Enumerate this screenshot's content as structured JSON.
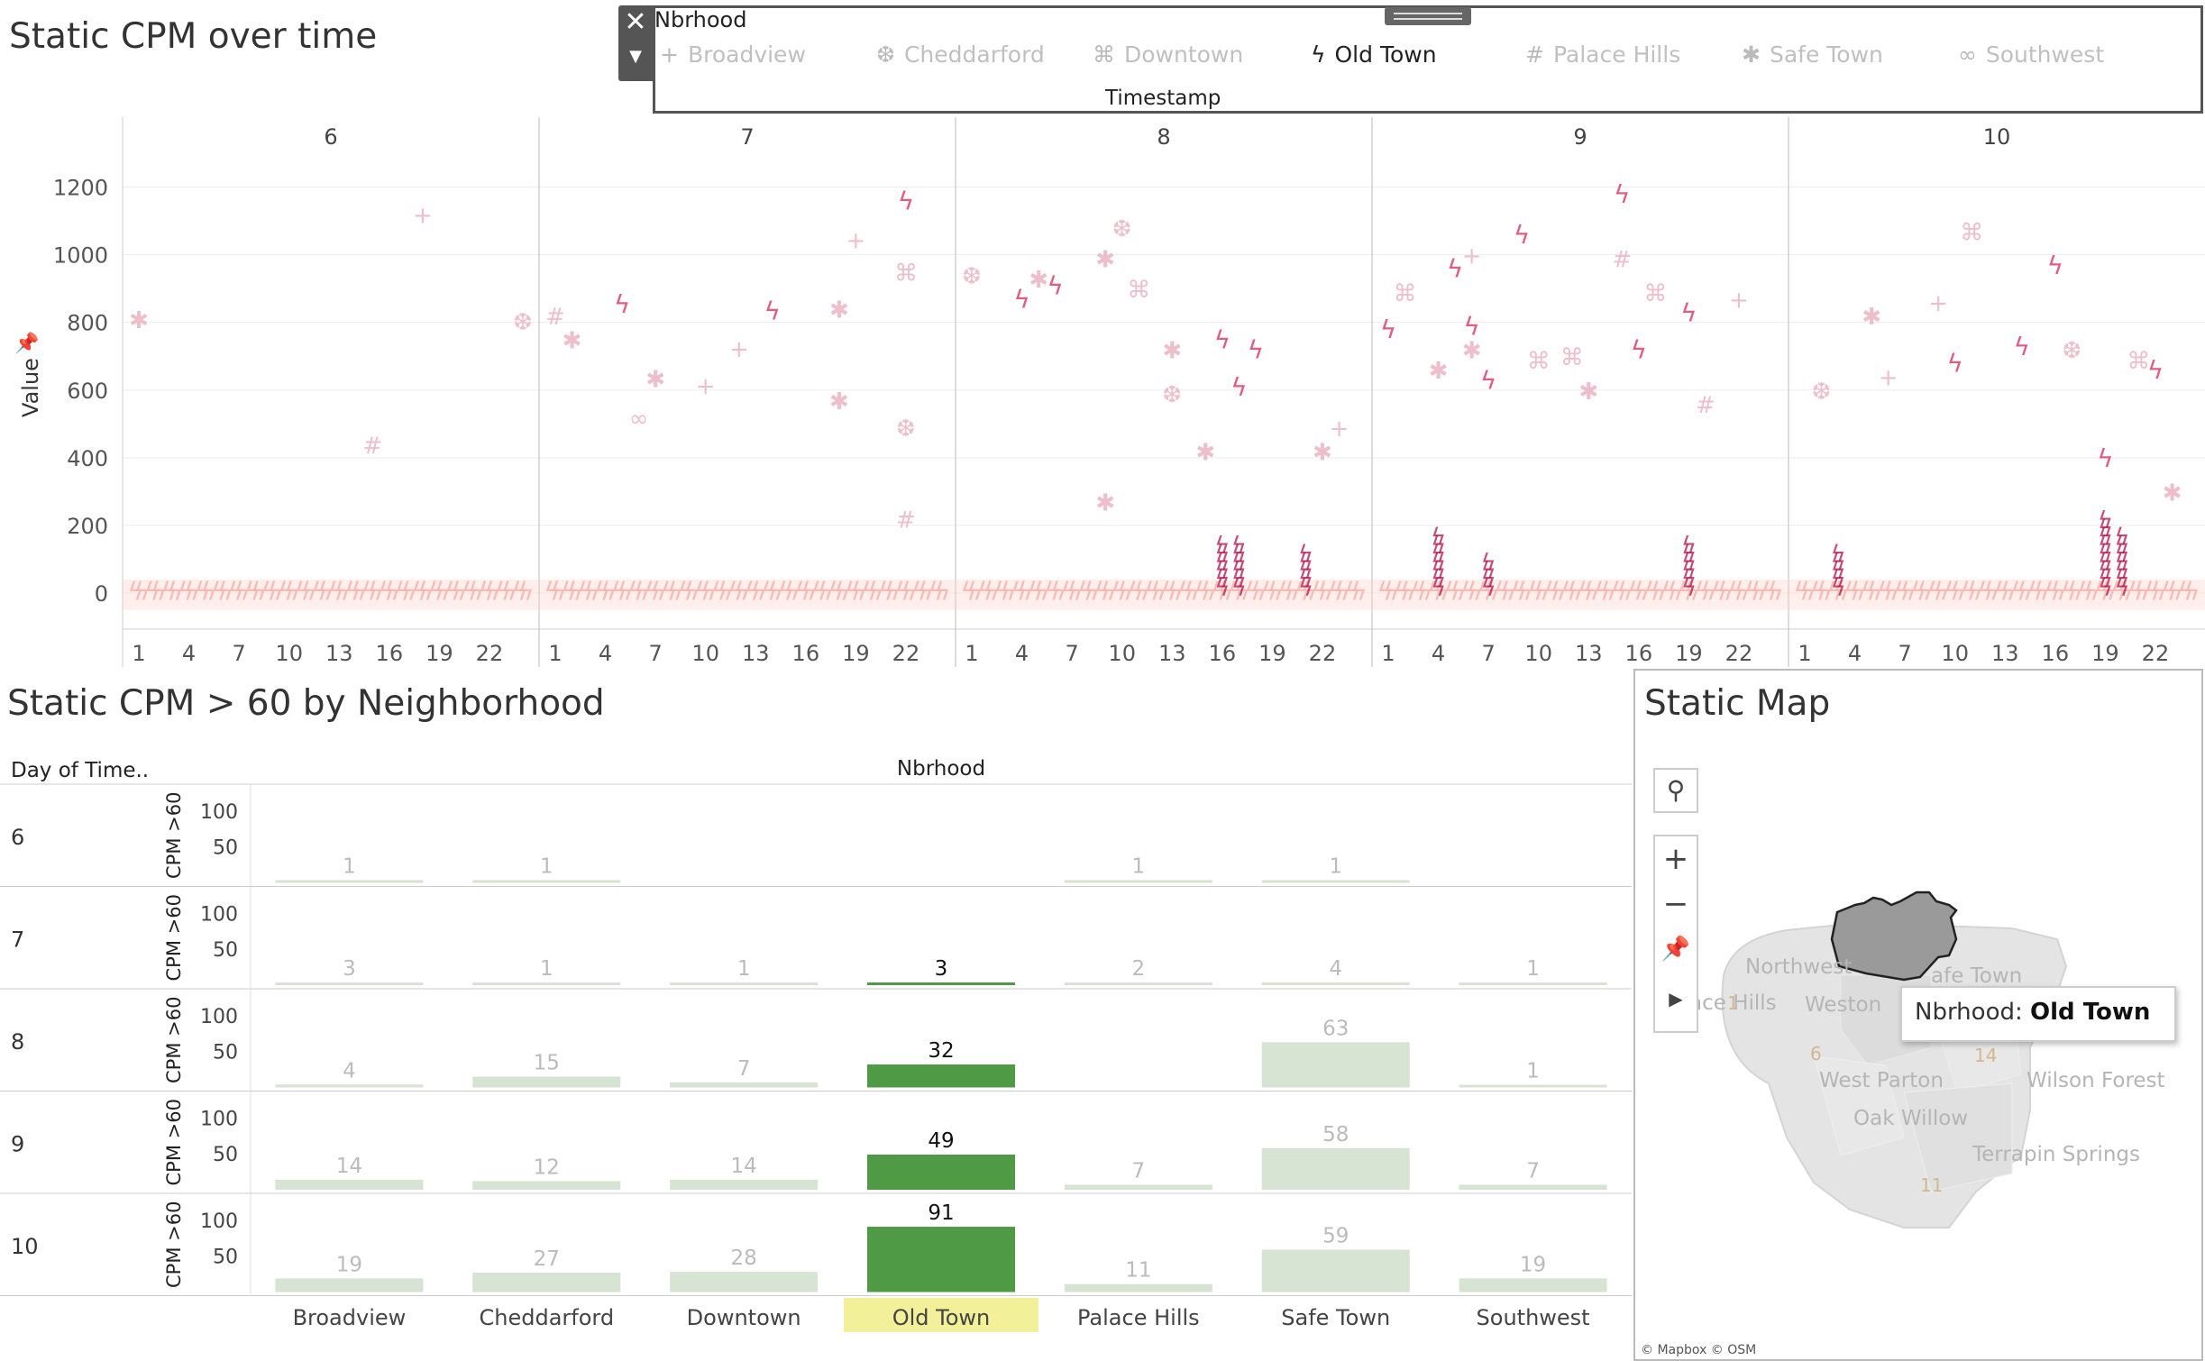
{
  "top_title": "Static CPM over time",
  "legend": {
    "title": "Nbrhood",
    "close_icon": "close-icon",
    "menu_icon": "chevron-down-icon",
    "items": [
      {
        "label": "Broadview",
        "icon": "plus-icon",
        "glyph": "+",
        "selected": false
      },
      {
        "label": "Cheddarford",
        "icon": "snowflake-icon",
        "glyph": "❆",
        "selected": false
      },
      {
        "label": "Downtown",
        "icon": "command-icon",
        "glyph": "⌘",
        "selected": false
      },
      {
        "label": "Old Town",
        "icon": "lightning-icon",
        "glyph": "ϟ",
        "selected": true
      },
      {
        "label": "Palace Hills",
        "icon": "hash-icon",
        "glyph": "#",
        "selected": false
      },
      {
        "label": "Safe Town",
        "icon": "asterisk-icon",
        "glyph": "✱",
        "selected": false
      },
      {
        "label": "Southwest",
        "icon": "infinity-icon",
        "glyph": "∞",
        "selected": false
      }
    ],
    "footer": "Timestamp"
  },
  "bottom_title": "Static CPM > 60 by Neighborhood",
  "map": {
    "title": "Static Map",
    "tooltip_key": "Nbrhood:",
    "tooltip_value": "Old Town",
    "attribution": "© Mapbox © OSM",
    "labels": [
      {
        "text": "Northwest"
      },
      {
        "text": "Weston"
      },
      {
        "text": "ace Hills"
      },
      {
        "text": "afe Town"
      },
      {
        "text": "West Parton"
      },
      {
        "text": "Wilson Forest"
      },
      {
        "text": "Oak Willow"
      },
      {
        "text": "Terrapin Springs"
      },
      {
        "text": "1"
      },
      {
        "text": "6"
      },
      {
        "text": "14"
      },
      {
        "text": "11"
      }
    ]
  },
  "chart_data": [
    {
      "type": "scatter",
      "title": "Static CPM over time",
      "ylabel": "Value",
      "xlabel": "",
      "ylim": [
        -80,
        1300
      ],
      "yticks": [
        0,
        200,
        400,
        600,
        800,
        1000,
        1200
      ],
      "panels": [
        "6",
        "7",
        "8",
        "9",
        "10"
      ],
      "hour_ticks": [
        "1",
        "4",
        "7",
        "10",
        "13",
        "16",
        "19",
        "22"
      ],
      "highlight_series": "Old Town",
      "points": [
        {
          "day": "6",
          "hour": 1,
          "value": 810,
          "nbrhood": "Safe Town"
        },
        {
          "day": "6",
          "hour": 15,
          "value": 440,
          "nbrhood": "Palace Hills"
        },
        {
          "day": "6",
          "hour": 18,
          "value": 1120,
          "nbrhood": "Broadview"
        },
        {
          "day": "6",
          "hour": 24,
          "value": 805,
          "nbrhood": "Cheddarford"
        },
        {
          "day": "7",
          "hour": 1,
          "value": 820,
          "nbrhood": "Palace Hills"
        },
        {
          "day": "7",
          "hour": 2,
          "value": 750,
          "nbrhood": "Safe Town"
        },
        {
          "day": "7",
          "hour": 5,
          "value": 855,
          "nbrhood": "Old Town"
        },
        {
          "day": "7",
          "hour": 6,
          "value": 520,
          "nbrhood": "Southwest"
        },
        {
          "day": "7",
          "hour": 7,
          "value": 635,
          "nbrhood": "Safe Town"
        },
        {
          "day": "7",
          "hour": 10,
          "value": 615,
          "nbrhood": "Broadview"
        },
        {
          "day": "7",
          "hour": 12,
          "value": 725,
          "nbrhood": "Broadview"
        },
        {
          "day": "7",
          "hour": 14,
          "value": 835,
          "nbrhood": "Old Town"
        },
        {
          "day": "7",
          "hour": 18,
          "value": 840,
          "nbrhood": "Safe Town"
        },
        {
          "day": "7",
          "hour": 18,
          "value": 570,
          "nbrhood": "Safe Town"
        },
        {
          "day": "7",
          "hour": 19,
          "value": 1045,
          "nbrhood": "Broadview"
        },
        {
          "day": "7",
          "hour": 22,
          "value": 1160,
          "nbrhood": "Old Town"
        },
        {
          "day": "7",
          "hour": 22,
          "value": 950,
          "nbrhood": "Downtown"
        },
        {
          "day": "7",
          "hour": 22,
          "value": 490,
          "nbrhood": "Cheddarford"
        },
        {
          "day": "7",
          "hour": 22,
          "value": 220,
          "nbrhood": "Palace Hills"
        },
        {
          "day": "8",
          "hour": 1,
          "value": 940,
          "nbrhood": "Cheddarford"
        },
        {
          "day": "8",
          "hour": 4,
          "value": 870,
          "nbrhood": "Old Town"
        },
        {
          "day": "8",
          "hour": 5,
          "value": 930,
          "nbrhood": "Safe Town"
        },
        {
          "day": "8",
          "hour": 6,
          "value": 910,
          "nbrhood": "Old Town"
        },
        {
          "day": "8",
          "hour": 9,
          "value": 990,
          "nbrhood": "Safe Town"
        },
        {
          "day": "8",
          "hour": 9,
          "value": 270,
          "nbrhood": "Safe Town"
        },
        {
          "day": "8",
          "hour": 10,
          "value": 1080,
          "nbrhood": "Cheddarford"
        },
        {
          "day": "8",
          "hour": 11,
          "value": 900,
          "nbrhood": "Downtown"
        },
        {
          "day": "8",
          "hour": 13,
          "value": 720,
          "nbrhood": "Safe Town"
        },
        {
          "day": "8",
          "hour": 13,
          "value": 590,
          "nbrhood": "Cheddarford"
        },
        {
          "day": "8",
          "hour": 15,
          "value": 420,
          "nbrhood": "Safe Town"
        },
        {
          "day": "8",
          "hour": 16,
          "value": 750,
          "nbrhood": "Old Town"
        },
        {
          "day": "8",
          "hour": 17,
          "value": 610,
          "nbrhood": "Old Town"
        },
        {
          "day": "8",
          "hour": 18,
          "value": 720,
          "nbrhood": "Old Town"
        },
        {
          "day": "8",
          "hour": 22,
          "value": 420,
          "nbrhood": "Safe Town"
        },
        {
          "day": "8",
          "hour": 23,
          "value": 490,
          "nbrhood": "Broadview"
        },
        {
          "day": "9",
          "hour": 1,
          "value": 780,
          "nbrhood": "Old Town"
        },
        {
          "day": "9",
          "hour": 2,
          "value": 890,
          "nbrhood": "Downtown"
        },
        {
          "day": "9",
          "hour": 4,
          "value": 660,
          "nbrhood": "Safe Town"
        },
        {
          "day": "9",
          "hour": 5,
          "value": 960,
          "nbrhood": "Old Town"
        },
        {
          "day": "9",
          "hour": 6,
          "value": 1000,
          "nbrhood": "Broadview"
        },
        {
          "day": "9",
          "hour": 6,
          "value": 790,
          "nbrhood": "Old Town"
        },
        {
          "day": "9",
          "hour": 6,
          "value": 720,
          "nbrhood": "Safe Town"
        },
        {
          "day": "9",
          "hour": 7,
          "value": 630,
          "nbrhood": "Old Town"
        },
        {
          "day": "9",
          "hour": 9,
          "value": 1060,
          "nbrhood": "Old Town"
        },
        {
          "day": "9",
          "hour": 10,
          "value": 690,
          "nbrhood": "Downtown"
        },
        {
          "day": "9",
          "hour": 12,
          "value": 700,
          "nbrhood": "Downtown"
        },
        {
          "day": "9",
          "hour": 13,
          "value": 600,
          "nbrhood": "Safe Town"
        },
        {
          "day": "9",
          "hour": 15,
          "value": 1180,
          "nbrhood": "Old Town"
        },
        {
          "day": "9",
          "hour": 15,
          "value": 990,
          "nbrhood": "Palace Hills"
        },
        {
          "day": "9",
          "hour": 16,
          "value": 720,
          "nbrhood": "Old Town"
        },
        {
          "day": "9",
          "hour": 17,
          "value": 890,
          "nbrhood": "Downtown"
        },
        {
          "day": "9",
          "hour": 19,
          "value": 830,
          "nbrhood": "Old Town"
        },
        {
          "day": "9",
          "hour": 20,
          "value": 560,
          "nbrhood": "Palace Hills"
        },
        {
          "day": "9",
          "hour": 22,
          "value": 870,
          "nbrhood": "Broadview"
        },
        {
          "day": "10",
          "hour": 2,
          "value": 600,
          "nbrhood": "Cheddarford"
        },
        {
          "day": "10",
          "hour": 5,
          "value": 820,
          "nbrhood": "Safe Town"
        },
        {
          "day": "10",
          "hour": 6,
          "value": 640,
          "nbrhood": "Broadview"
        },
        {
          "day": "10",
          "hour": 9,
          "value": 860,
          "nbrhood": "Broadview"
        },
        {
          "day": "10",
          "hour": 10,
          "value": 680,
          "nbrhood": "Old Town"
        },
        {
          "day": "10",
          "hour": 11,
          "value": 1070,
          "nbrhood": "Downtown"
        },
        {
          "day": "10",
          "hour": 14,
          "value": 730,
          "nbrhood": "Old Town"
        },
        {
          "day": "10",
          "hour": 16,
          "value": 970,
          "nbrhood": "Old Town"
        },
        {
          "day": "10",
          "hour": 17,
          "value": 720,
          "nbrhood": "Cheddarford"
        },
        {
          "day": "10",
          "hour": 19,
          "value": 400,
          "nbrhood": "Old Town"
        },
        {
          "day": "10",
          "hour": 21,
          "value": 690,
          "nbrhood": "Downtown"
        },
        {
          "day": "10",
          "hour": 22,
          "value": 660,
          "nbrhood": "Old Town"
        },
        {
          "day": "10",
          "hour": 23,
          "value": 300,
          "nbrhood": "Safe Town"
        }
      ]
    },
    {
      "type": "bar",
      "title": "Static CPM > 60 by Neighborhood",
      "row_header": "Day of Time..",
      "column_header": "Nbrhood",
      "ylabel": "CPM >60",
      "yticks": [
        50,
        100
      ],
      "ylim": [
        0,
        130
      ],
      "categories": [
        "Broadview",
        "Cheddarford",
        "Downtown",
        "Old Town",
        "Palace Hills",
        "Safe Town",
        "Southwest"
      ],
      "highlight": "Old Town",
      "rows": [
        {
          "day": "6",
          "values": [
            1,
            1,
            null,
            null,
            1,
            1,
            null
          ]
        },
        {
          "day": "7",
          "values": [
            3,
            1,
            1,
            3,
            2,
            4,
            1
          ]
        },
        {
          "day": "8",
          "values": [
            4,
            15,
            7,
            32,
            null,
            63,
            1
          ]
        },
        {
          "day": "9",
          "values": [
            14,
            12,
            14,
            49,
            7,
            58,
            7
          ]
        },
        {
          "day": "10",
          "values": [
            19,
            27,
            28,
            91,
            11,
            59,
            19
          ]
        }
      ]
    }
  ]
}
